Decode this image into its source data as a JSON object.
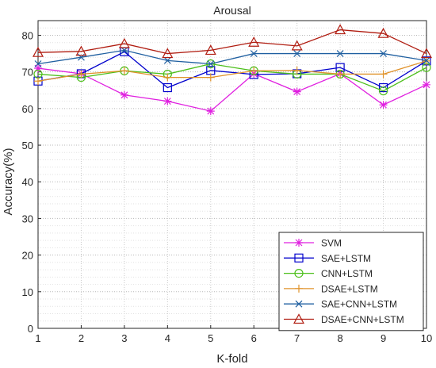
{
  "chart_data": {
    "type": "line",
    "title": "Arousal",
    "xlabel": "K-fold",
    "ylabel": "Accuracy(%)",
    "x": [
      1,
      2,
      3,
      4,
      5,
      6,
      7,
      8,
      9,
      10
    ],
    "xlim": [
      1,
      10
    ],
    "ylim": [
      0,
      84
    ],
    "x_ticks": [
      "1",
      "2",
      "3",
      "4",
      "5",
      "6",
      "7",
      "8",
      "9",
      "10"
    ],
    "y_ticks": [
      "0",
      "10",
      "20",
      "30",
      "40",
      "50",
      "60",
      "70",
      "80"
    ],
    "grid": "dotted",
    "legend_position": "bottom-right",
    "series": [
      {
        "name": "SVM",
        "color": "#e020e0",
        "marker": "asterisk",
        "values": [
          71.0,
          69.5,
          63.7,
          62.0,
          59.3,
          69.5,
          64.6,
          69.5,
          61.0,
          66.5
        ]
      },
      {
        "name": "SAE+LSTM",
        "color": "#0000cc",
        "marker": "square",
        "values": [
          67.5,
          69.5,
          75.5,
          65.7,
          70.4,
          69.3,
          69.5,
          71.2,
          65.7,
          73.0
        ]
      },
      {
        "name": "CNN+LSTM",
        "color": "#4cbf1a",
        "marker": "circle",
        "values": [
          69.4,
          68.5,
          70.3,
          69.4,
          72.2,
          70.3,
          69.4,
          69.4,
          64.8,
          71.2
        ]
      },
      {
        "name": "DSAE+LSTM",
        "color": "#e0922a",
        "marker": "plus",
        "values": [
          67.5,
          69.4,
          70.3,
          68.5,
          68.5,
          70.3,
          70.4,
          69.4,
          69.4,
          73.0
        ]
      },
      {
        "name": "SAE+CNN+LSTM",
        "color": "#1f5fa0",
        "marker": "x",
        "values": [
          72.2,
          74.0,
          75.9,
          73.1,
          72.2,
          75.0,
          75.0,
          75.0,
          75.0,
          73.1
        ]
      },
      {
        "name": "DSAE+CNN+LSTM",
        "color": "#b01c10",
        "marker": "triangle",
        "values": [
          75.3,
          75.6,
          77.7,
          75.0,
          75.9,
          78.1,
          77.1,
          81.5,
          80.5,
          75.0
        ]
      }
    ]
  }
}
